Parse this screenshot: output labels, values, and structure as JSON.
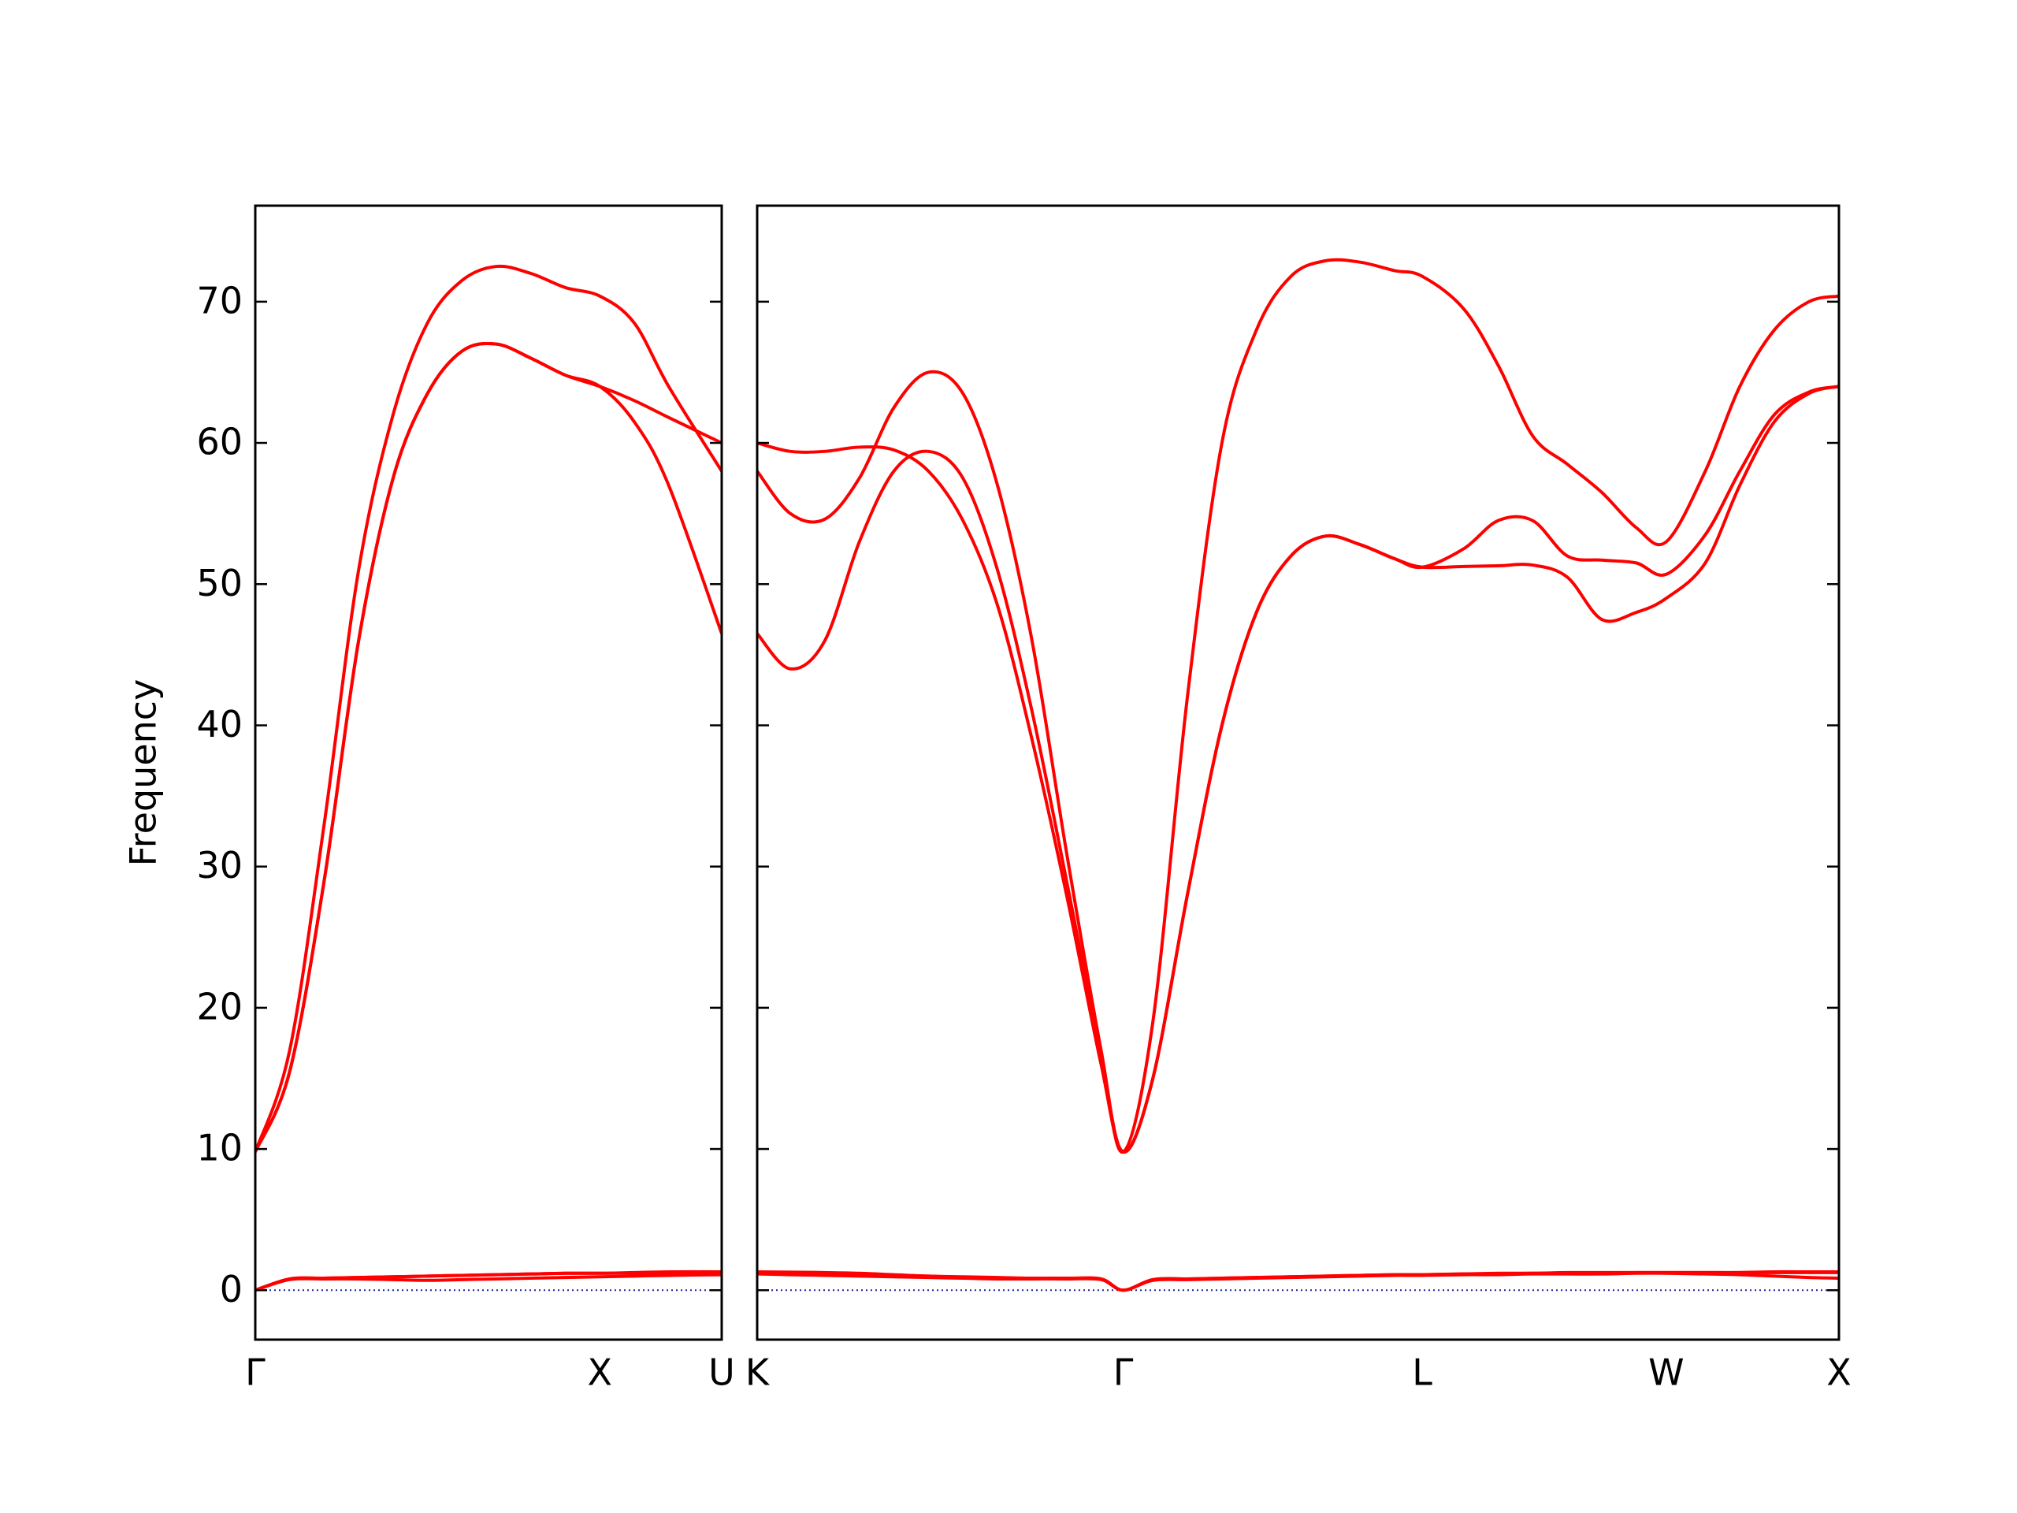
{
  "chart_data": [
    {
      "type": "line",
      "ylabel": "Frequency",
      "ytick_labels": true,
      "zero_line": true,
      "xlim": [
        0,
        1.354
      ],
      "ylim": [
        -3.5,
        76.8
      ],
      "xticks": [
        {
          "value": 0,
          "label": "Γ"
        },
        {
          "value": 1,
          "label": "X"
        },
        {
          "value": 1.354,
          "label": "U"
        }
      ],
      "yticks": [
        0,
        10,
        20,
        30,
        40,
        50,
        60,
        70
      ],
      "x": [
        0,
        0.1,
        0.2,
        0.3,
        0.4,
        0.5,
        0.6,
        0.7,
        0.8,
        0.9,
        1.0,
        1.1,
        1.2,
        1.354
      ],
      "series": [
        {
          "color": "#ff0000",
          "values": [
            0,
            0.8,
            0.85,
            0.9,
            0.95,
            1.0,
            1.05,
            1.1,
            1.15,
            1.2,
            1.2,
            1.2,
            1.2,
            1.2
          ]
        },
        {
          "color": "#ff0000",
          "values": [
            0,
            0.75,
            0.8,
            0.8,
            0.75,
            0.7,
            0.75,
            0.8,
            0.85,
            0.9,
            0.95,
            1.0,
            1.05,
            1.1
          ]
        },
        {
          "color": "#ff0000",
          "values": [
            0,
            0.8,
            0.85,
            0.9,
            0.95,
            1.0,
            1.05,
            1.1,
            1.15,
            1.2,
            1.2,
            1.25,
            1.3,
            1.3
          ]
        },
        {
          "color": "#ff0000",
          "values": [
            9.8,
            17,
            33,
            51,
            62,
            68.5,
            71.5,
            72.5,
            72,
            71,
            70.4,
            68.5,
            64,
            58
          ]
        },
        {
          "color": "#ff0000",
          "values": [
            9.8,
            15.5,
            29,
            46,
            57.5,
            63.5,
            66.5,
            67,
            66,
            64.8,
            64,
            63,
            61.8,
            60
          ]
        },
        {
          "color": "#ff0000",
          "values": [
            9.8,
            15.5,
            29,
            46,
            57.5,
            63.5,
            66.5,
            67,
            66,
            64.8,
            64,
            61.5,
            57,
            46.5
          ]
        }
      ]
    },
    {
      "type": "line",
      "ytick_labels": false,
      "zero_line": true,
      "xlim": [
        1.354,
        4.487
      ],
      "ylim": [
        -3.5,
        76.8
      ],
      "xticks": [
        {
          "value": 1.354,
          "label": "K"
        },
        {
          "value": 2.414,
          "label": "Γ"
        },
        {
          "value": 3.28,
          "label": "L"
        },
        {
          "value": 3.987,
          "label": "W"
        },
        {
          "value": 4.487,
          "label": "X"
        }
      ],
      "yticks": [
        0,
        10,
        20,
        30,
        40,
        50,
        60,
        70
      ],
      "x": [
        1.354,
        1.45,
        1.55,
        1.65,
        1.75,
        1.85,
        1.95,
        2.05,
        2.15,
        2.25,
        2.35,
        2.414,
        2.5,
        2.6,
        2.7,
        2.8,
        2.9,
        3.0,
        3.1,
        3.2,
        3.28,
        3.4,
        3.5,
        3.6,
        3.7,
        3.8,
        3.9,
        3.987,
        4.1,
        4.2,
        4.3,
        4.4,
        4.487
      ],
      "series": [
        {
          "color": "#ff0000",
          "values": [
            1.3,
            1.28,
            1.25,
            1.2,
            1.1,
            1.0,
            0.95,
            0.9,
            0.85,
            0.85,
            0.8,
            0,
            0.75,
            0.8,
            0.85,
            0.9,
            0.95,
            1.0,
            1.05,
            1.1,
            1.1,
            1.15,
            1.15,
            1.2,
            1.2,
            1.2,
            1.25,
            1.25,
            1.25,
            1.25,
            1.3,
            1.3,
            1.3
          ]
        },
        {
          "color": "#ff0000",
          "values": [
            1.15,
            1.1,
            1.05,
            1.0,
            0.95,
            0.9,
            0.85,
            0.8,
            0.8,
            0.8,
            0.75,
            0,
            0.7,
            0.75,
            0.8,
            0.85,
            0.9,
            0.95,
            1.0,
            1.05,
            1.05,
            1.1,
            1.1,
            1.15,
            1.15,
            1.15,
            1.2,
            1.2,
            1.15,
            1.1,
            1.0,
            0.9,
            0.85
          ]
        },
        {
          "color": "#ff0000",
          "values": [
            1.2,
            1.2,
            1.15,
            1.1,
            1.05,
            1.0,
            0.9,
            0.85,
            0.85,
            0.8,
            0.8,
            0,
            0.75,
            0.8,
            0.85,
            0.9,
            0.95,
            1.0,
            1.05,
            1.1,
            1.1,
            1.15,
            1.2,
            1.2,
            1.25,
            1.25,
            1.25,
            1.25,
            1.25,
            1.25,
            1.25,
            1.25,
            1.25
          ]
        },
        {
          "color": "#ff0000",
          "values": [
            58,
            55,
            54.6,
            57.5,
            62.5,
            65,
            63.5,
            57,
            46,
            31,
            17,
            9.8,
            19,
            42,
            60,
            68,
            71.8,
            72.9,
            72.8,
            72.2,
            71.8,
            69.5,
            65.5,
            60.5,
            58.5,
            56.5,
            54,
            53,
            58,
            64,
            68,
            70,
            70.4
          ]
        },
        {
          "color": "#ff0000",
          "values": [
            60,
            59.4,
            59.4,
            59.7,
            59.5,
            58,
            54.5,
            48.5,
            39,
            28,
            16,
            9.8,
            15,
            28,
            40,
            48,
            52,
            53.4,
            52.8,
            51.8,
            51.2,
            52.5,
            54.5,
            54.5,
            52,
            51.7,
            51.5,
            50.7,
            53.5,
            58,
            62,
            63.6,
            64
          ]
        },
        {
          "color": "#ff0000",
          "values": [
            46.5,
            44,
            46,
            53,
            58,
            59.4,
            57.5,
            51,
            41,
            29,
            16.5,
            9.8,
            15,
            28,
            40,
            48,
            52,
            53.4,
            52.8,
            51.8,
            51.2,
            51.25,
            51.3,
            51.35,
            50.5,
            47.5,
            48,
            49,
            51.5,
            57,
            61.5,
            63.5,
            64
          ]
        }
      ]
    }
  ]
}
